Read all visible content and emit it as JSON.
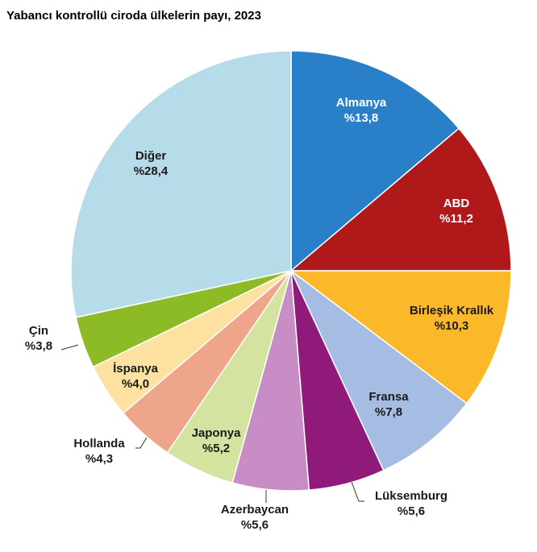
{
  "chart_data": {
    "type": "pie",
    "title": "Yabancı kontrollü ciroda ülkelerin payı, 2023",
    "categories": [
      "Almanya",
      "ABD",
      "Birleşik Krallık",
      "Fransa",
      "Lüksemburg",
      "Azerbaycan",
      "Japonya",
      "Hollanda",
      "İspanya",
      "Çin",
      "Diğer"
    ],
    "values": [
      13.8,
      11.2,
      10.3,
      7.8,
      5.6,
      5.6,
      5.2,
      4.3,
      4.0,
      3.8,
      28.4
    ],
    "value_labels": [
      "%13,8",
      "%11,2",
      "%10,3",
      "%7,8",
      "%5,6",
      "%5,6",
      "%5,2",
      "%4,3",
      "%4,0",
      "%3,8",
      "%28,4"
    ],
    "colors": [
      "#2a7fc9",
      "#b0191a",
      "#fbb829",
      "#a6bde3",
      "#8f1a7a",
      "#c88dc4",
      "#d4e3a0",
      "#eea589",
      "#fce1a0",
      "#8dbb25",
      "#b6dcea"
    ]
  }
}
